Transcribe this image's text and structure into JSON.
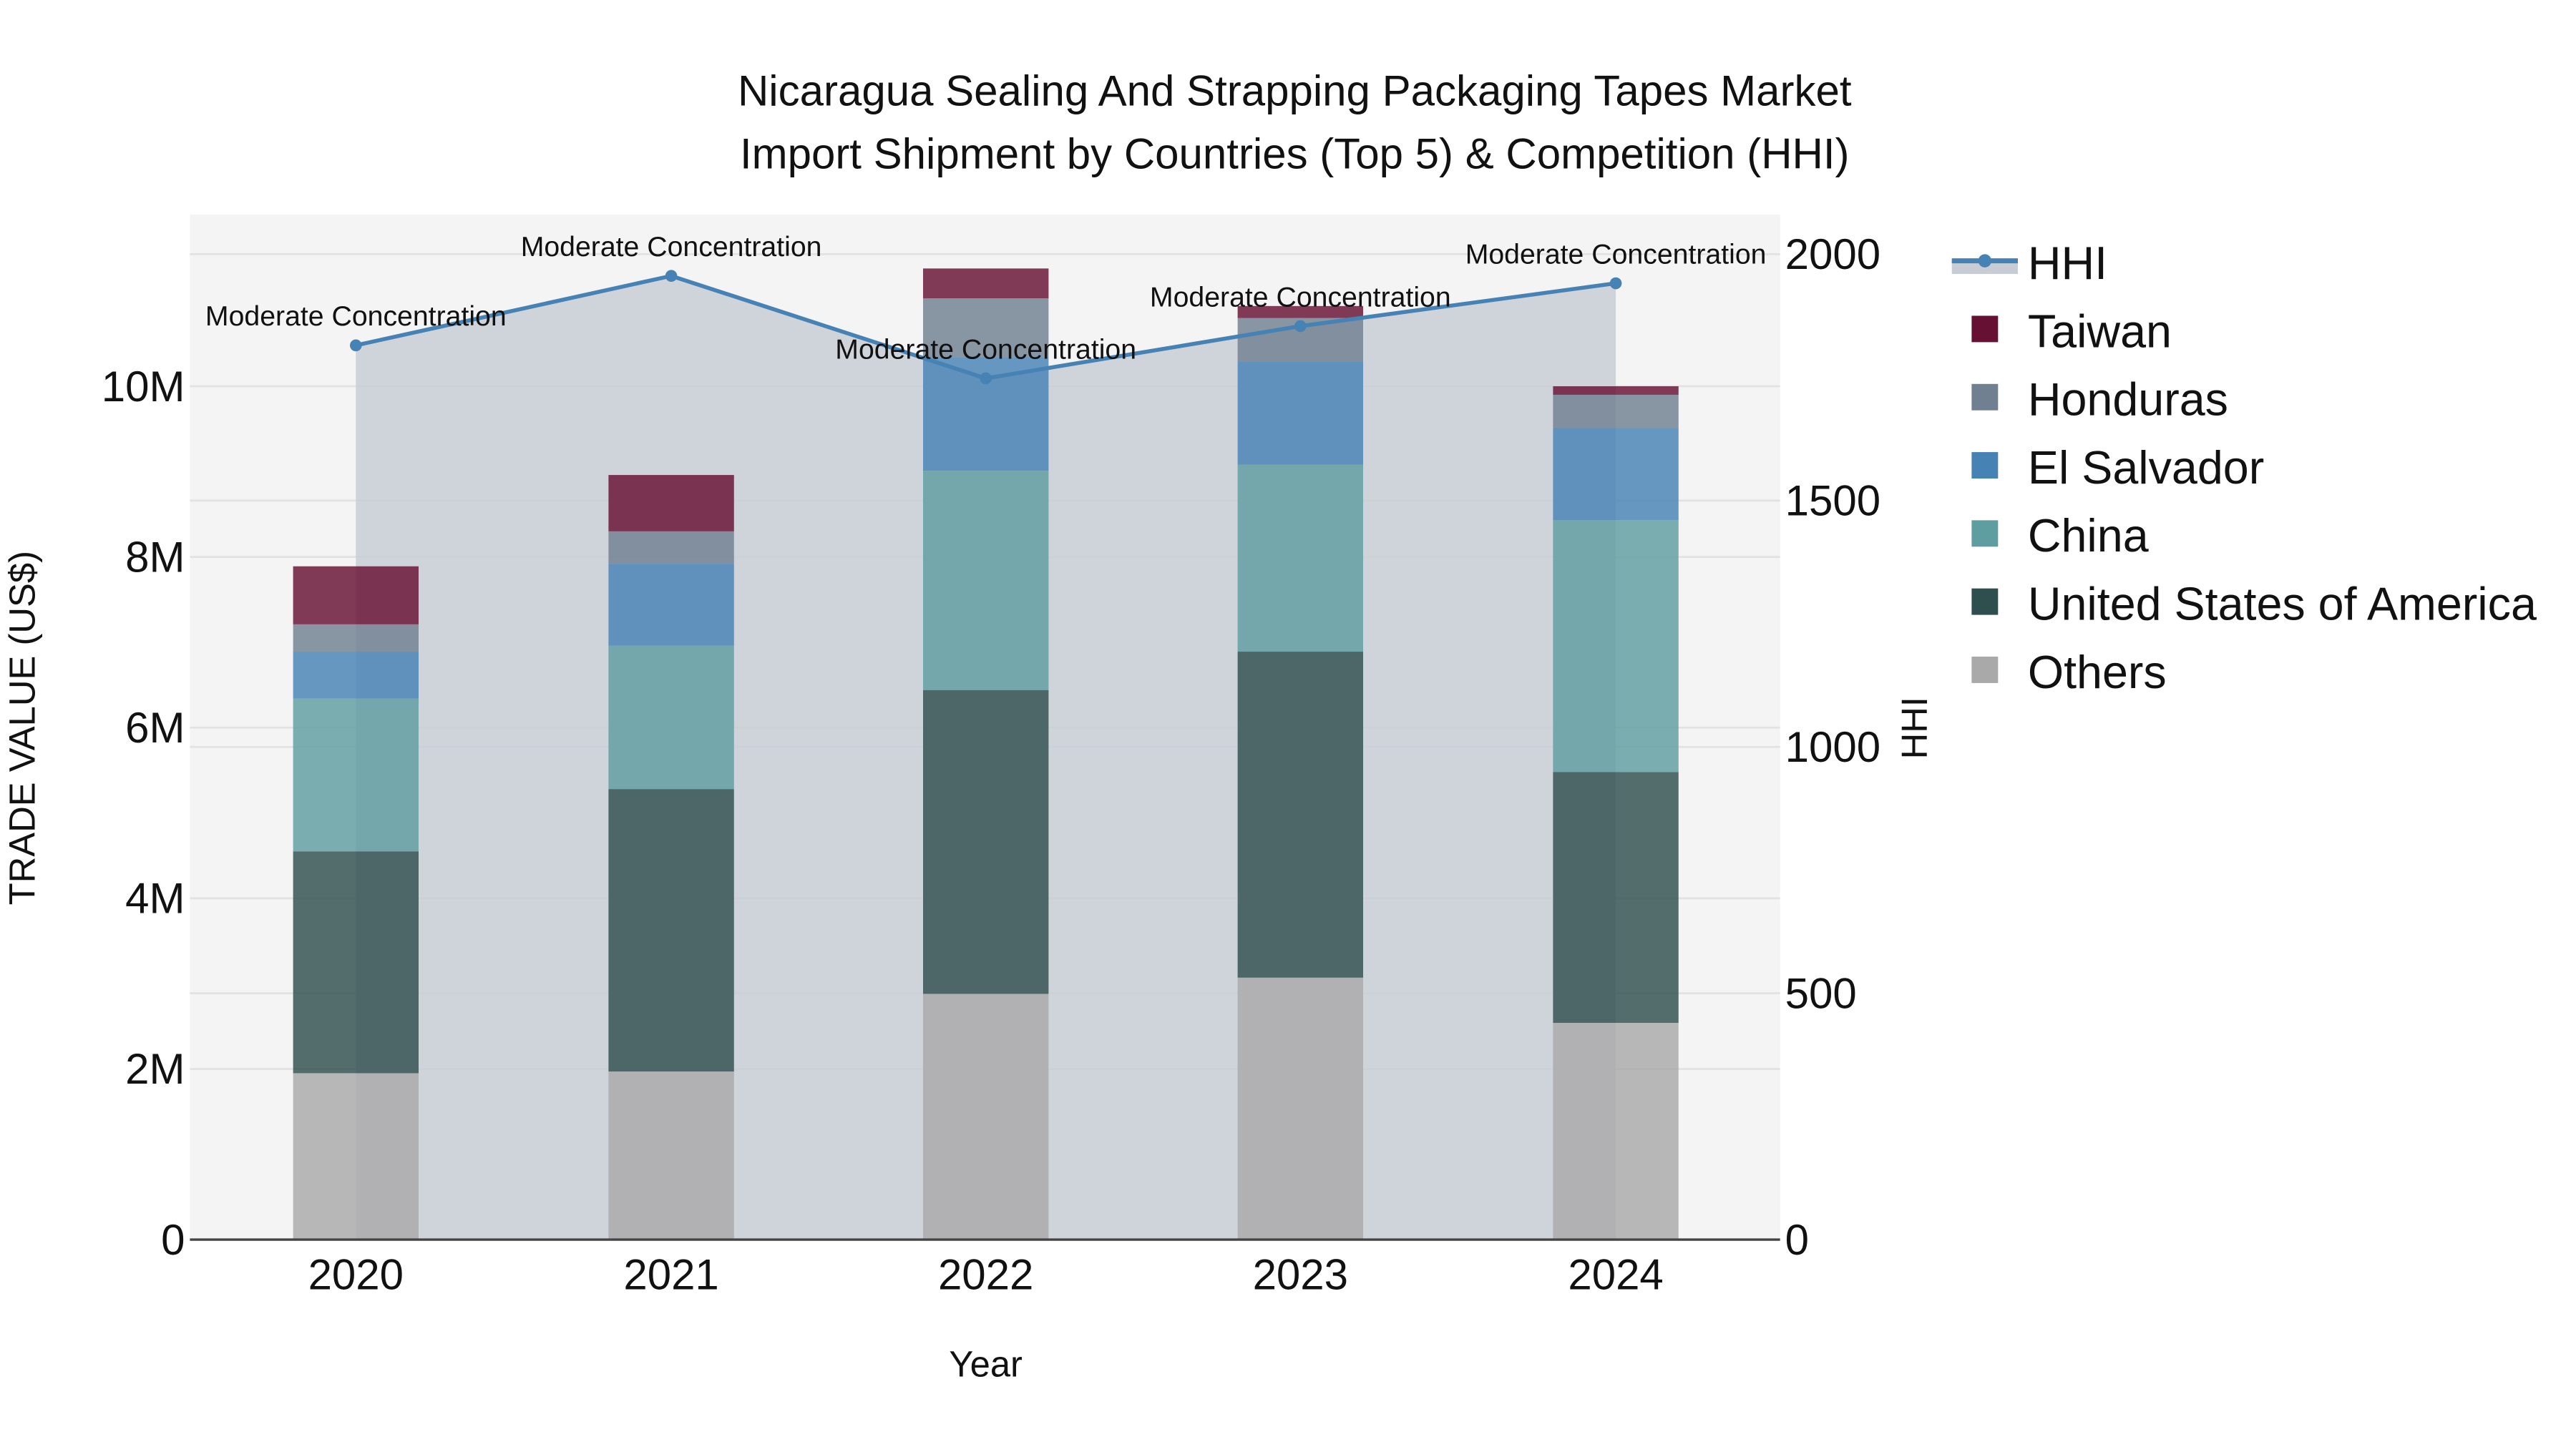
{
  "title_line1": "Nicaragua Sealing And Strapping Packaging Tapes Market",
  "title_line2": "Import Shipment by Countries (Top 5) & Competition (HHI)",
  "chart_data": {
    "type": "bar",
    "subtype": "stacked bar with line overlay (secondary axis)",
    "title": "Nicaragua Sealing And Strapping Packaging Tapes Market Import Shipment by Countries (Top 5) & Competition (HHI)",
    "xlabel": "Year",
    "ylabel": "TRADE VALUE (US$)",
    "y2label": "HHI",
    "categories": [
      "2020",
      "2021",
      "2022",
      "2023",
      "2024"
    ],
    "ylim": [
      0,
      12000000
    ],
    "y_ticks": [
      "0",
      "2M",
      "4M",
      "6M",
      "8M",
      "10M"
    ],
    "y2lim": [
      0,
      2000
    ],
    "y2_ticks": [
      "0",
      "500",
      "1000",
      "1500",
      "2000"
    ],
    "grid": true,
    "legend_position": "right",
    "series": [
      {
        "name": "Others",
        "color": "#a9a9a9",
        "values": [
          1950000,
          1970000,
          2880000,
          3070000,
          2540000
        ]
      },
      {
        "name": "United States of America",
        "color": "#2f4f4f",
        "values": [
          2600000,
          3310000,
          3560000,
          3820000,
          2940000
        ]
      },
      {
        "name": "China",
        "color": "#5f9ea0",
        "values": [
          1790000,
          1680000,
          2570000,
          2190000,
          2950000
        ]
      },
      {
        "name": "El Salvador",
        "color": "#4682b4",
        "values": [
          550000,
          960000,
          1330000,
          1210000,
          1080000
        ]
      },
      {
        "name": "Honduras",
        "color": "#708090",
        "values": [
          320000,
          380000,
          690000,
          510000,
          390000
        ]
      },
      {
        "name": "Taiwan",
        "color": "#661133",
        "values": [
          680000,
          660000,
          350000,
          140000,
          100000
        ]
      }
    ],
    "line_series": {
      "name": "HHI",
      "axis": "y2",
      "color": "#4682b4",
      "fill_color": "#c8cdd5",
      "values": [
        1815,
        1956,
        1748,
        1854,
        1941
      ],
      "annotations": [
        "Moderate Concentration",
        "Moderate Concentration",
        "Moderate Concentration",
        "Moderate Concentration",
        "Moderate Concentration"
      ]
    }
  },
  "legend": [
    {
      "label": "HHI",
      "kind": "line",
      "color": "#4682b4"
    },
    {
      "label": "Taiwan",
      "kind": "box",
      "color": "#661133"
    },
    {
      "label": "Honduras",
      "kind": "box",
      "color": "#708090"
    },
    {
      "label": "El Salvador",
      "kind": "box",
      "color": "#4682b4"
    },
    {
      "label": "China",
      "kind": "box",
      "color": "#5f9ea0"
    },
    {
      "label": "United States of America",
      "kind": "box",
      "color": "#2f4f4f"
    },
    {
      "label": "Others",
      "kind": "box",
      "color": "#a9a9a9"
    }
  ]
}
